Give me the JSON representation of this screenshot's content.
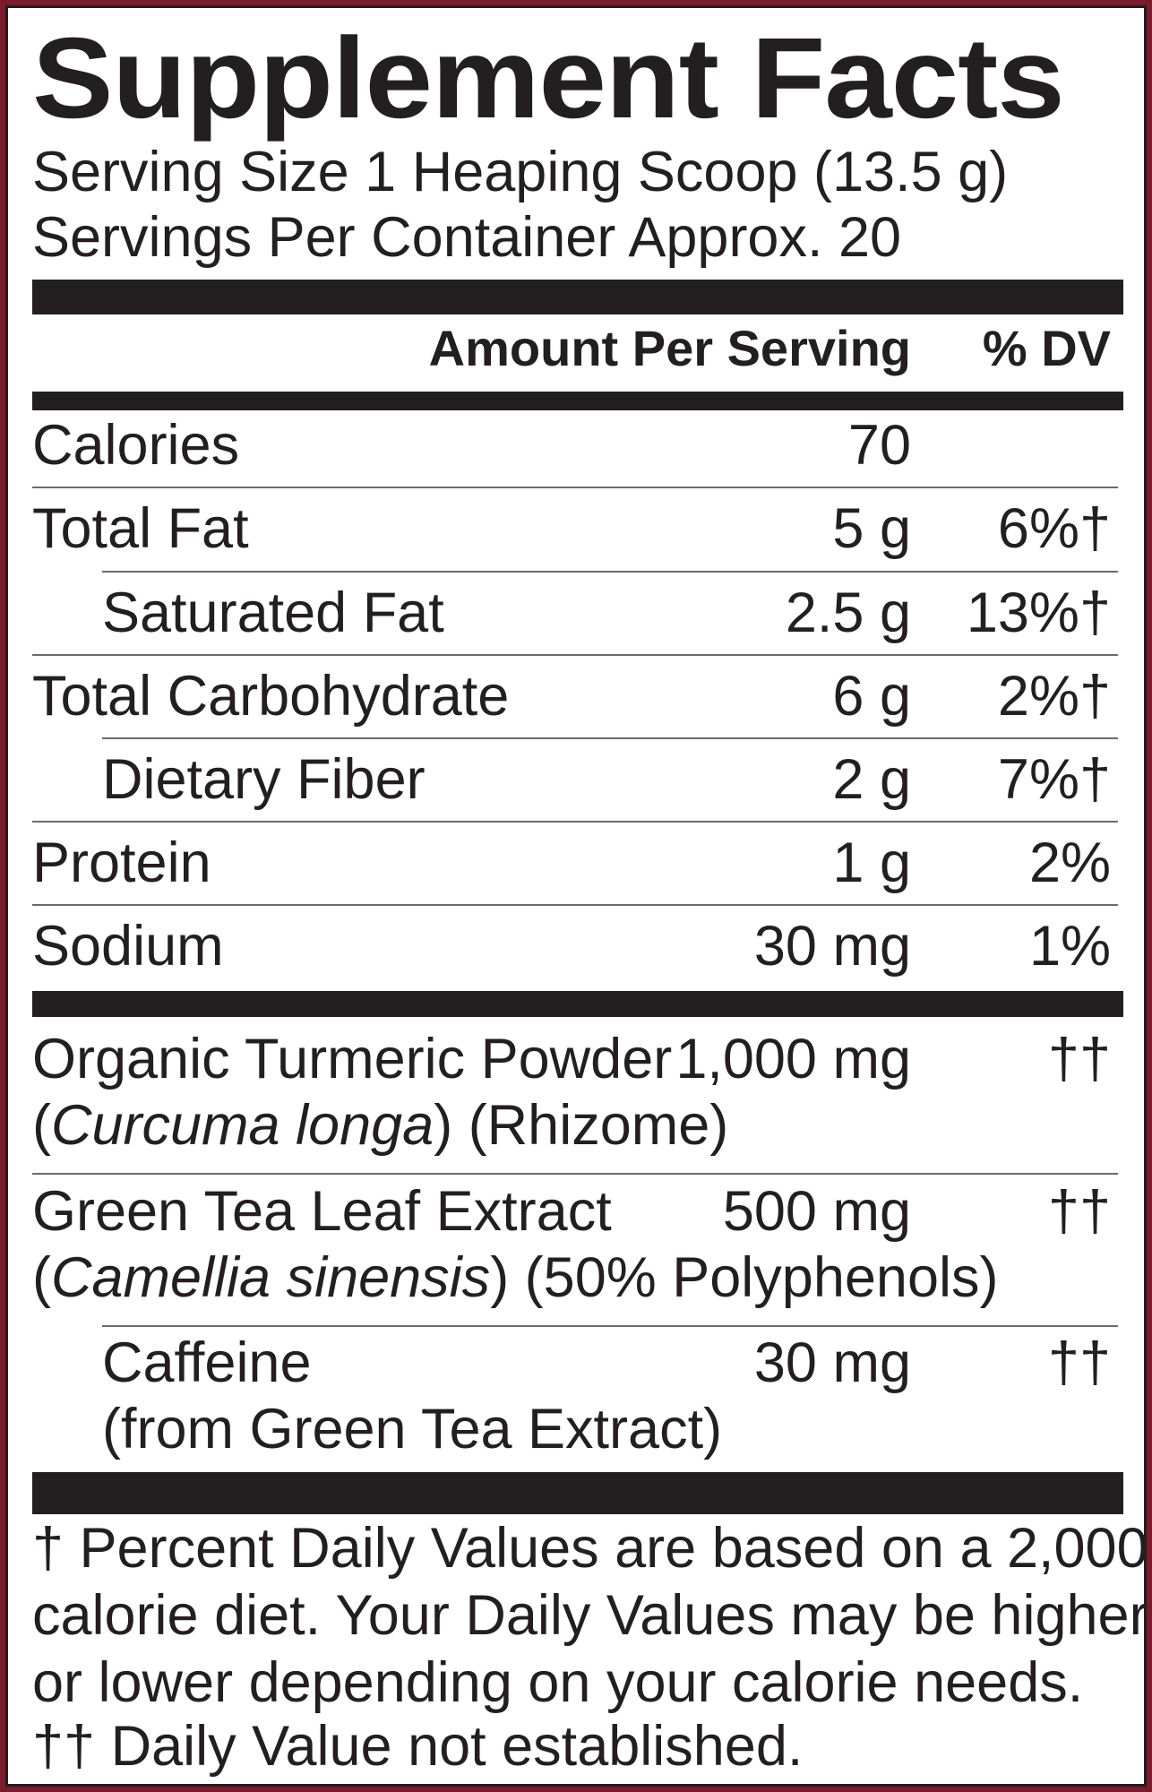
{
  "title": "Supplement Facts",
  "serving_size": "Serving Size 1 Heaping Scoop (13.5 g)",
  "servings_per_container": "Servings Per Container Approx. 20",
  "header": {
    "amount": "Amount Per Serving",
    "dv": "% DV"
  },
  "nutrients": [
    {
      "name": "Calories",
      "amount": "70",
      "dv": ""
    },
    {
      "name": "Total Fat",
      "amount": "5 g",
      "dv": "6%†"
    },
    {
      "name": "Saturated Fat",
      "amount": "2.5 g",
      "dv": "13%†"
    },
    {
      "name": "Total Carbohydrate",
      "amount": "6 g",
      "dv": "2%†"
    },
    {
      "name": "Dietary Fiber",
      "amount": "2 g",
      "dv": "7%†"
    },
    {
      "name": "Protein",
      "amount": "1 g",
      "dv": "2%"
    },
    {
      "name": "Sodium",
      "amount": "30 mg",
      "dv": "1%"
    }
  ],
  "ingredients": [
    {
      "name": "Organic Turmeric Powder",
      "amount": "1,000 mg",
      "dv": "††",
      "latin": "Curcuma longa",
      "detail": "(Rhizome)"
    },
    {
      "name": "Green Tea Leaf Extract",
      "amount": "500 mg",
      "dv": "††",
      "latin": "Camellia sinensis",
      "detail": "(50% Polyphenols)"
    },
    {
      "name": "Caffeine",
      "amount": "30 mg",
      "dv": "††",
      "detail": "(from Green Tea Extract)"
    }
  ],
  "footnotes": [
    "† Percent Daily Values are based on a 2,000",
    "calorie diet. Your Daily Values may be higher",
    "or lower depending on your calorie needs.",
    "†† Daily Value not established."
  ],
  "colors": {
    "border": "#7a1b2b",
    "text": "#231f20"
  }
}
